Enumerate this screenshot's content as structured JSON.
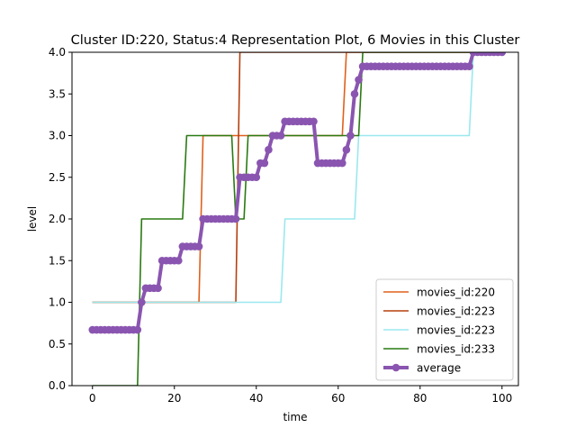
{
  "chart_data": {
    "type": "line",
    "title": "Cluster ID:220, Status:4 Representation Plot, 6 Movies in this Cluster",
    "xlabel": "time",
    "ylabel": "level",
    "xlim": [
      -5,
      104
    ],
    "ylim": [
      0,
      4
    ],
    "xticks": [
      0,
      20,
      40,
      60,
      80,
      100
    ],
    "xtick_labels": [
      "0",
      "20",
      "40",
      "60",
      "80",
      "100"
    ],
    "yticks": [
      0,
      0.5,
      1,
      1.5,
      2,
      2.5,
      3,
      3.5,
      4
    ],
    "ytick_labels": [
      "0.0",
      "0.5",
      "1.0",
      "1.5",
      "2.0",
      "2.5",
      "3.0",
      "3.5",
      "4.0"
    ],
    "grid": false,
    "legend_position": "lower-right",
    "series": [
      {
        "name": "movies_id:220",
        "color": "#e0601c",
        "x": [
          0,
          26,
          27,
          61,
          62,
          100
        ],
        "y": [
          1,
          1,
          3,
          3,
          4,
          4
        ]
      },
      {
        "name": "movies_id:223",
        "color": "#b5400f",
        "x": [
          0,
          35,
          36,
          100
        ],
        "y": [
          1,
          1,
          4,
          4
        ]
      },
      {
        "name": "movies_id:223",
        "color": "#9ae8ef",
        "x": [
          0,
          46,
          47,
          64,
          65,
          92,
          93,
          100
        ],
        "y": [
          1,
          1,
          2,
          2,
          3,
          3,
          4,
          4
        ]
      },
      {
        "name": "movies_id:233",
        "color": "#2a7a12",
        "x": [
          0,
          11,
          12,
          22,
          23,
          34,
          35,
          37,
          38,
          65,
          66,
          100
        ],
        "y": [
          0,
          0,
          2,
          2,
          3,
          3,
          2,
          2,
          3,
          3,
          4,
          4
        ]
      },
      {
        "name": "average",
        "color": "#8a55b0",
        "marker": "circle",
        "x": [
          0,
          1,
          2,
          3,
          4,
          5,
          6,
          7,
          8,
          9,
          10,
          11,
          12,
          13,
          14,
          15,
          16,
          17,
          18,
          19,
          20,
          21,
          22,
          23,
          24,
          25,
          26,
          27,
          28,
          29,
          30,
          31,
          32,
          33,
          34,
          35,
          36,
          37,
          38,
          39,
          40,
          41,
          42,
          43,
          44,
          45,
          46,
          47,
          48,
          49,
          50,
          51,
          52,
          53,
          54,
          55,
          56,
          57,
          58,
          59,
          60,
          61,
          62,
          63,
          64,
          65,
          66,
          67,
          68,
          69,
          70,
          71,
          72,
          73,
          74,
          75,
          76,
          77,
          78,
          79,
          80,
          81,
          82,
          83,
          84,
          85,
          86,
          87,
          88,
          89,
          90,
          91,
          92,
          93,
          94,
          95,
          96,
          97,
          98,
          99,
          100
        ],
        "y": [
          0.67,
          0.67,
          0.67,
          0.67,
          0.67,
          0.67,
          0.67,
          0.67,
          0.67,
          0.67,
          0.67,
          0.67,
          1.0,
          1.17,
          1.17,
          1.17,
          1.17,
          1.5,
          1.5,
          1.5,
          1.5,
          1.5,
          1.67,
          1.67,
          1.67,
          1.67,
          1.67,
          2.0,
          2.0,
          2.0,
          2.0,
          2.0,
          2.0,
          2.0,
          2.0,
          2.0,
          2.5,
          2.5,
          2.5,
          2.5,
          2.5,
          2.67,
          2.67,
          2.83,
          3.0,
          3.0,
          3.0,
          3.17,
          3.17,
          3.17,
          3.17,
          3.17,
          3.17,
          3.17,
          3.17,
          2.67,
          2.67,
          2.67,
          2.67,
          2.67,
          2.67,
          2.67,
          2.83,
          3.0,
          3.5,
          3.67,
          3.83,
          3.83,
          3.83,
          3.83,
          3.83,
          3.83,
          3.83,
          3.83,
          3.83,
          3.83,
          3.83,
          3.83,
          3.83,
          3.83,
          3.83,
          3.83,
          3.83,
          3.83,
          3.83,
          3.83,
          3.83,
          3.83,
          3.83,
          3.83,
          3.83,
          3.83,
          3.83,
          4.0,
          4.0,
          4.0,
          4.0,
          4.0,
          4.0,
          4.0,
          4.0
        ]
      }
    ]
  }
}
